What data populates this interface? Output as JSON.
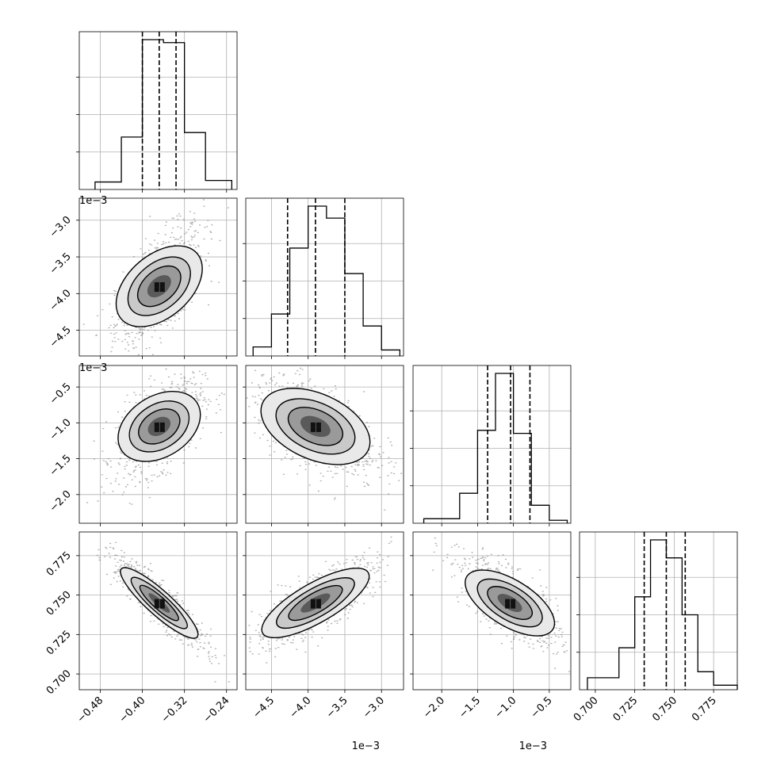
{
  "chart_data": {
    "type": "corner",
    "title": "",
    "grid": true,
    "offset_label": "1e−3",
    "axes_ticks": [
      {
        "ticks": [
          -0.48,
          -0.4,
          -0.32,
          -0.24
        ],
        "labels": [
          "−0.48",
          "−0.40",
          "−0.32",
          "−0.24"
        ],
        "range": [
          -0.52,
          -0.22
        ],
        "scale": 1
      },
      {
        "ticks": [
          -4.5,
          -4.0,
          -3.5,
          -3.0
        ],
        "labels": [
          "−4.5",
          "−4.0",
          "−3.5",
          "−3.0"
        ],
        "range": [
          -4.85,
          -2.7
        ],
        "scale": 0.001
      },
      {
        "ticks": [
          -2.0,
          -1.5,
          -1.0,
          -0.5
        ],
        "labels": [
          "−2.0",
          "−1.5",
          "−1.0",
          "−0.5"
        ],
        "range": [
          -2.4,
          -0.2
        ],
        "scale": 0.001
      },
      {
        "ticks": [
          0.7,
          0.725,
          0.75,
          0.775
        ],
        "labels": [
          "0.700",
          "0.725",
          "0.750",
          "0.775"
        ],
        "range": [
          0.69,
          0.79
        ],
        "scale": 1
      }
    ],
    "histograms": [
      {
        "quantiles": [
          -0.4,
          -0.368,
          -0.336
        ],
        "bin_edges": [
          -0.49,
          -0.44,
          -0.4,
          -0.36,
          -0.32,
          -0.28,
          -0.23
        ],
        "counts": [
          0.05,
          0.35,
          1.0,
          0.98,
          0.38,
          0.06
        ]
      },
      {
        "quantiles": [
          -4.28,
          -3.9,
          -3.5
        ],
        "bin_edges": [
          -4.75,
          -4.5,
          -4.25,
          -4.0,
          -3.75,
          -3.5,
          -3.25,
          -3.0,
          -2.75
        ],
        "counts": [
          0.06,
          0.28,
          0.72,
          1.0,
          0.92,
          0.55,
          0.2,
          0.04
        ]
      },
      {
        "quantiles": [
          -1.36,
          -1.04,
          -0.77
        ],
        "bin_edges": [
          -2.25,
          -1.75,
          -1.5,
          -1.25,
          -1.0,
          -0.75,
          -0.5,
          -0.25
        ],
        "counts": [
          0.03,
          0.2,
          0.62,
          1.0,
          0.6,
          0.12,
          0.02
        ]
      },
      {
        "quantiles": [
          0.731,
          0.745,
          0.757
        ],
        "bin_edges": [
          0.695,
          0.715,
          0.725,
          0.735,
          0.745,
          0.755,
          0.765,
          0.775,
          0.79
        ],
        "counts": [
          0.08,
          0.28,
          0.62,
          1.0,
          0.88,
          0.5,
          0.12,
          0.03
        ]
      }
    ],
    "scatter_panels": [
      {
        "row": 1,
        "col": 0,
        "center": [
          -0.368,
          -3.9
        ],
        "sigma": [
          0.036,
          0.36
        ],
        "rho": 0.62
      },
      {
        "row": 2,
        "col": 0,
        "center": [
          -0.368,
          -1.05
        ],
        "sigma": [
          0.036,
          0.3
        ],
        "rho": 0.55
      },
      {
        "row": 2,
        "col": 1,
        "center": [
          -3.9,
          -1.05
        ],
        "sigma": [
          0.36,
          0.3
        ],
        "rho": -0.55
      },
      {
        "row": 3,
        "col": 0,
        "center": [
          -0.368,
          0.745
        ],
        "sigma": [
          0.036,
          0.012
        ],
        "rho": -0.9
      },
      {
        "row": 3,
        "col": 1,
        "center": [
          -3.9,
          0.745
        ],
        "sigma": [
          0.36,
          0.012
        ],
        "rho": 0.8
      },
      {
        "row": 3,
        "col": 2,
        "center": [
          -1.05,
          0.745
        ],
        "sigma": [
          0.3,
          0.012
        ],
        "rho": -0.7
      }
    ]
  }
}
